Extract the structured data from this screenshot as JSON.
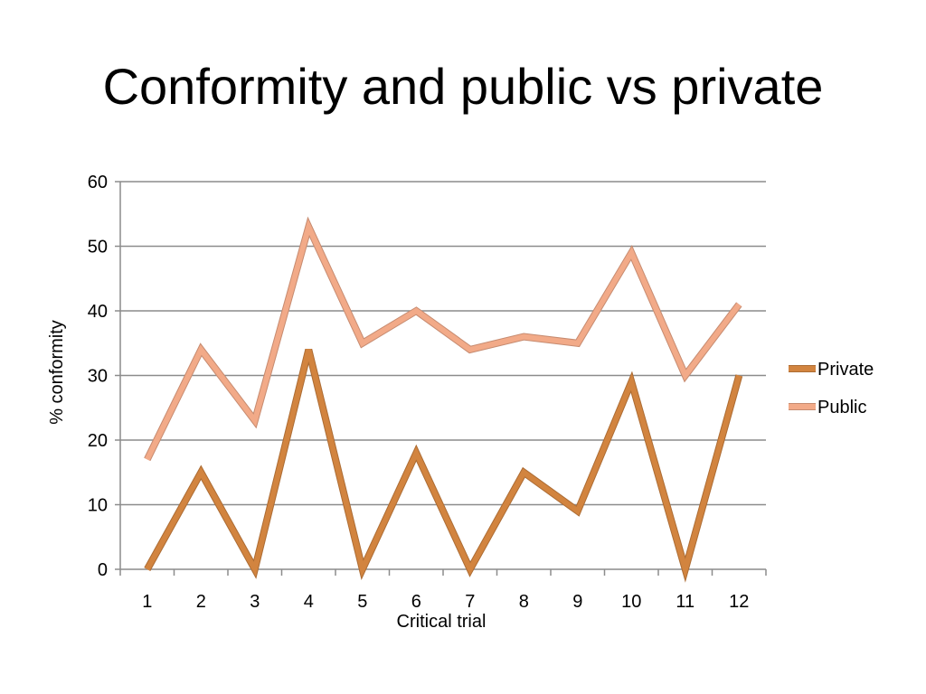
{
  "slide": {
    "title": "Conformity and public vs private"
  },
  "chart_data": {
    "type": "line",
    "title": "",
    "xlabel": "Critical trial",
    "ylabel": "% conformity",
    "categories": [
      "1",
      "2",
      "3",
      "4",
      "5",
      "6",
      "7",
      "8",
      "9",
      "10",
      "11",
      "12"
    ],
    "ylim": [
      0,
      60
    ],
    "yticks": [
      0,
      10,
      20,
      30,
      40,
      50,
      60
    ],
    "grid": true,
    "legend_position": "right",
    "series": [
      {
        "name": "Private",
        "color": "#D2843F",
        "values": [
          0,
          15,
          0,
          34,
          0,
          18,
          0,
          15,
          9,
          29,
          0,
          30
        ]
      },
      {
        "name": "Public",
        "color": "#F2AA88",
        "values": [
          17,
          34,
          23,
          53,
          35,
          40,
          34,
          36,
          35,
          49,
          30,
          41
        ]
      }
    ]
  }
}
